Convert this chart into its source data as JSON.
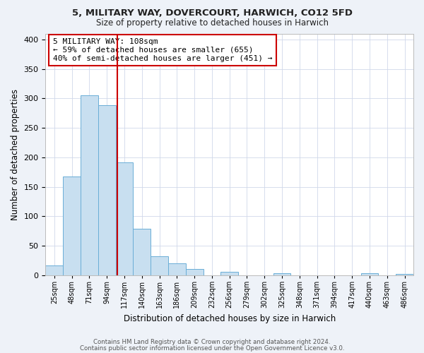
{
  "title1": "5, MILITARY WAY, DOVERCOURT, HARWICH, CO12 5FD",
  "title2": "Size of property relative to detached houses in Harwich",
  "xlabel": "Distribution of detached houses by size in Harwich",
  "ylabel": "Number of detached properties",
  "bin_labels": [
    "25sqm",
    "48sqm",
    "71sqm",
    "94sqm",
    "117sqm",
    "140sqm",
    "163sqm",
    "186sqm",
    "209sqm",
    "232sqm",
    "256sqm",
    "279sqm",
    "302sqm",
    "325sqm",
    "348sqm",
    "371sqm",
    "394sqm",
    "417sqm",
    "440sqm",
    "463sqm",
    "486sqm"
  ],
  "bar_heights": [
    17,
    168,
    305,
    288,
    191,
    79,
    32,
    20,
    11,
    0,
    6,
    0,
    0,
    3,
    0,
    0,
    0,
    0,
    3,
    0,
    2
  ],
  "bar_color": "#c8dff0",
  "bar_edge_color": "#6aaed6",
  "vline_index": 3.6,
  "vline_color": "#cc0000",
  "annotation_box_edge": "#cc0000",
  "annotation_text_line1": "5 MILITARY WAY: 108sqm",
  "annotation_text_line2": "← 59% of detached houses are smaller (655)",
  "annotation_text_line3": "40% of semi-detached houses are larger (451) →",
  "ylim": [
    0,
    410
  ],
  "yticks": [
    0,
    50,
    100,
    150,
    200,
    250,
    300,
    350,
    400
  ],
  "footer1": "Contains HM Land Registry data © Crown copyright and database right 2024.",
  "footer2": "Contains public sector information licensed under the Open Government Licence v3.0.",
  "bg_color": "#eef2f8",
  "plot_bg_color": "#ffffff",
  "grid_color": "#d0d8ea"
}
